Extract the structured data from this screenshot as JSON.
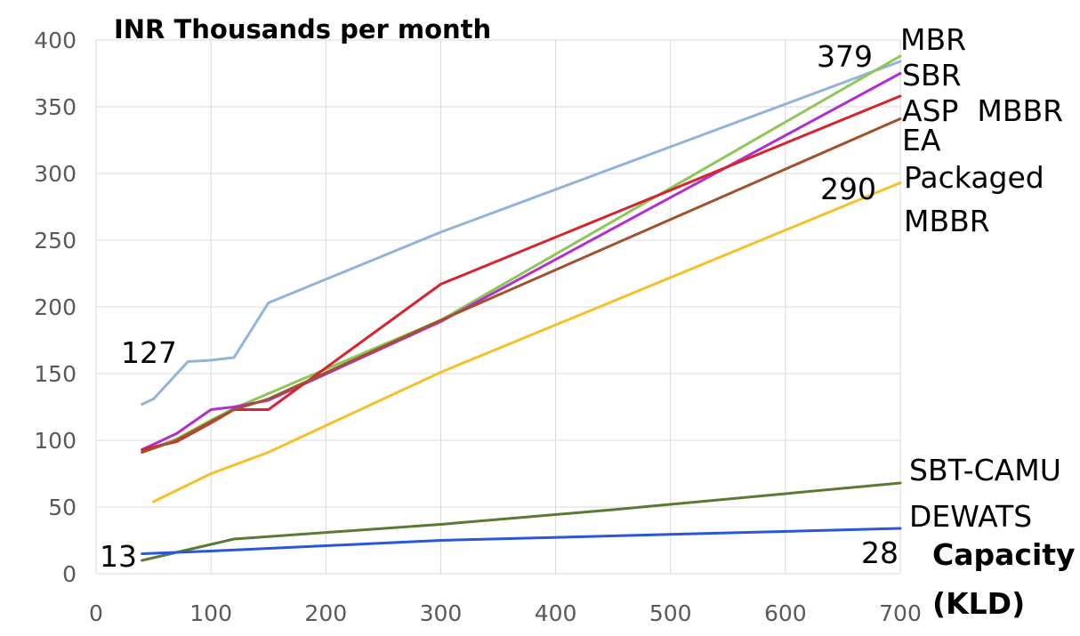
{
  "chart_data": {
    "type": "line",
    "title": "INR Thousands per month",
    "xlabel": "Capacity (KLD)",
    "xlabel_lines": [
      "Capacity",
      "(KLD)"
    ],
    "ylabel": "",
    "xlim": [
      0,
      700
    ],
    "ylim": [
      0,
      400
    ],
    "x_ticks": [
      0,
      100,
      200,
      300,
      400,
      500,
      600,
      700
    ],
    "y_ticks": [
      0,
      50,
      100,
      150,
      200,
      250,
      300,
      350,
      400
    ],
    "grid": true,
    "series": [
      {
        "name": "MBR",
        "color": "#91b4d8",
        "points": [
          [
            40,
            127
          ],
          [
            50,
            131
          ],
          [
            80,
            159
          ],
          [
            100,
            160
          ],
          [
            120,
            162
          ],
          [
            150,
            203
          ],
          [
            300,
            256
          ],
          [
            700,
            384
          ]
        ]
      },
      {
        "name": "",
        "color": "#8fc65a",
        "points": [
          [
            40,
            91
          ],
          [
            70,
            101
          ],
          [
            100,
            115
          ],
          [
            120,
            124
          ],
          [
            150,
            135
          ],
          [
            300,
            190
          ],
          [
            700,
            388
          ]
        ]
      },
      {
        "name": "SBR",
        "color": "#b12ed0",
        "points": [
          [
            40,
            93
          ],
          [
            70,
            105
          ],
          [
            100,
            123
          ],
          [
            120,
            125
          ],
          [
            150,
            130
          ],
          [
            300,
            189
          ],
          [
            700,
            375
          ]
        ]
      },
      {
        "name": "ASP  MBBR",
        "color": "#d6242e",
        "points": [
          [
            40,
            93
          ],
          [
            70,
            99
          ],
          [
            100,
            113
          ],
          [
            120,
            123
          ],
          [
            150,
            123
          ],
          [
            300,
            217
          ],
          [
            700,
            358
          ]
        ]
      },
      {
        "name": "EA",
        "color": "#a0522d",
        "points": [
          [
            40,
            91
          ],
          [
            70,
            100
          ],
          [
            100,
            114
          ],
          [
            120,
            123
          ],
          [
            150,
            131
          ],
          [
            300,
            190
          ],
          [
            700,
            341
          ]
        ]
      },
      {
        "name": "Packaged",
        "color": "#f5c02a",
        "points": [
          [
            50,
            54
          ],
          [
            100,
            75
          ],
          [
            150,
            91
          ],
          [
            300,
            151
          ],
          [
            700,
            293
          ]
        ]
      },
      {
        "name": "SBT-CAMU",
        "color": "#5a7a33",
        "points": [
          [
            40,
            10
          ],
          [
            70,
            16
          ],
          [
            100,
            22
          ],
          [
            120,
            26
          ],
          [
            300,
            37
          ],
          [
            450,
            48
          ],
          [
            700,
            68
          ]
        ]
      },
      {
        "name": "DEWATS",
        "color": "#2a56d8",
        "points": [
          [
            40,
            15
          ],
          [
            100,
            17
          ],
          [
            300,
            25
          ],
          [
            700,
            34
          ]
        ]
      }
    ],
    "labels": [
      {
        "text": "MBR"
      },
      {
        "text": "SBR"
      },
      {
        "text": "ASP  MBBR"
      },
      {
        "text": "EA"
      },
      {
        "text": "Packaged"
      },
      {
        "text": "MBBR"
      },
      {
        "text": "SBT-CAMU"
      },
      {
        "text": "DEWATS"
      }
    ],
    "annotations": [
      "127",
      "379",
      "290",
      "13",
      "28"
    ]
  }
}
